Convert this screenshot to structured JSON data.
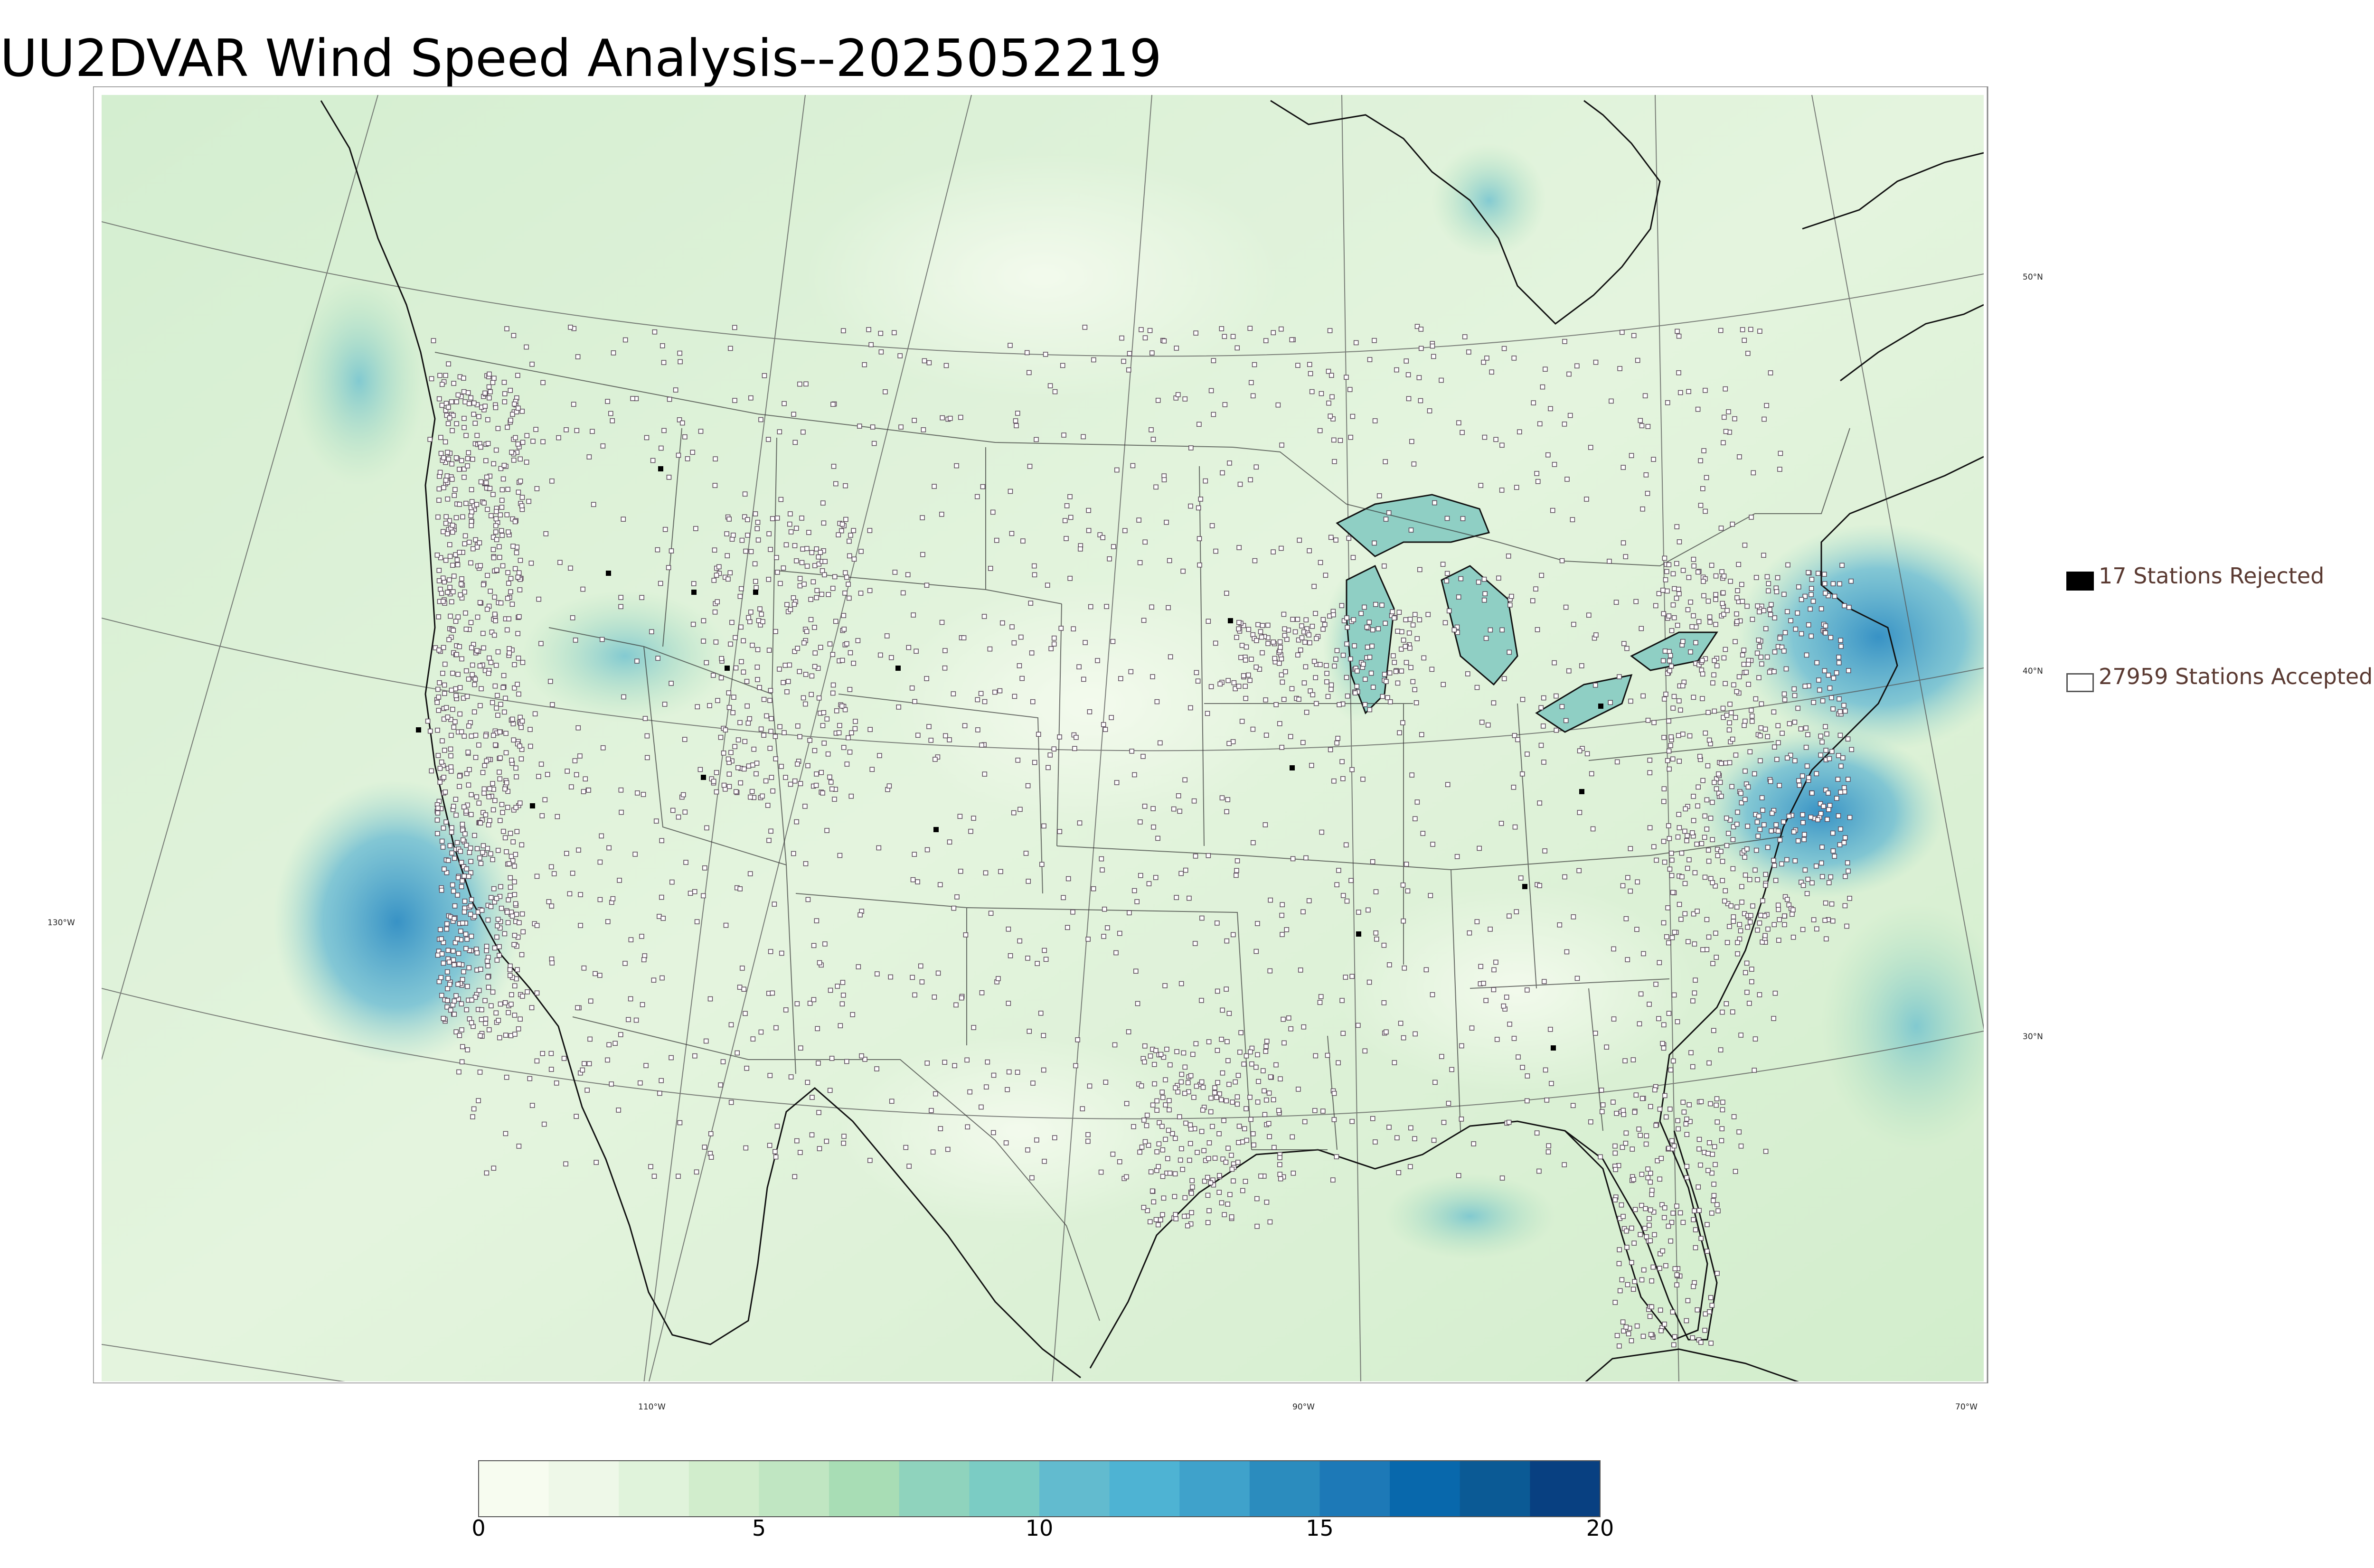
{
  "title": "UU2DVAR Wind Speed Analysis--2025052219",
  "legend": {
    "rejected": "17 Stations Rejected",
    "accepted": "27959 Stations Accepted"
  },
  "graticule_labels": {
    "lat_50": "50°N",
    "lat_40": "40°N",
    "lat_30": "30°N",
    "lon_130": "130°W",
    "lon_110": "110°W",
    "lon_90": "90°W",
    "lon_70": "70°W"
  },
  "colorbar": {
    "min": 0,
    "max": 20,
    "ticks": [
      "0",
      "5",
      "10",
      "15",
      "20"
    ],
    "colors": [
      "#f7fcf0",
      "#eef8e8",
      "#e0f3db",
      "#d1edcc",
      "#c0e6c2",
      "#a8ddb5",
      "#8fd3bd",
      "#7bccc4",
      "#62bbcf",
      "#4eb3d3",
      "#3fa2cb",
      "#2b8cbe",
      "#1d79b7",
      "#0868ac",
      "#0b5a95",
      "#084081"
    ]
  },
  "colors": {
    "land_fill": "#e3f3dc",
    "ocean_fill": "#cfeccc",
    "strong_wind": "#3c98cc",
    "boundary": "#333333"
  }
}
